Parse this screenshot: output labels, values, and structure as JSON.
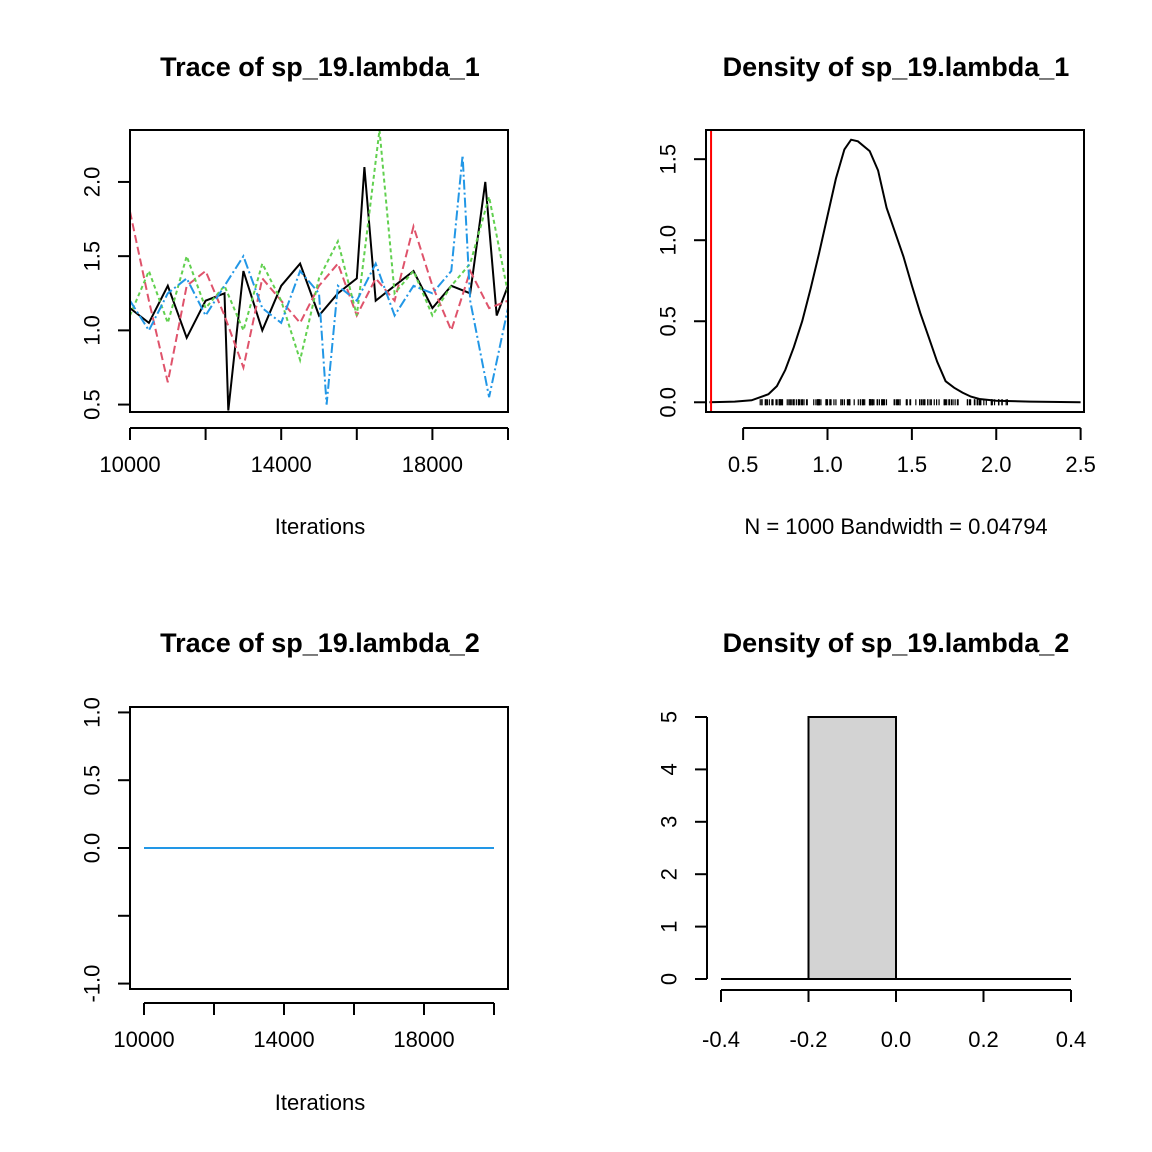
{
  "chart_data": [
    {
      "id": "trace1",
      "type": "line",
      "title": "Trace of sp_19.lambda_1",
      "xlabel": "Iterations",
      "ylabel": "",
      "xlim": [
        10000,
        20000
      ],
      "ylim": [
        0.45,
        2.35
      ],
      "xticks": [
        10000,
        12000,
        14000,
        16000,
        18000,
        20000
      ],
      "xtick_labels": [
        "10000",
        "",
        "14000",
        "",
        "18000",
        ""
      ],
      "yticks": [
        0.5,
        1.0,
        1.5,
        2.0
      ],
      "ytick_labels": [
        "0.5",
        "1.0",
        "1.5",
        "2.0"
      ],
      "grid": false,
      "series": [
        {
          "color": "#000000",
          "dash": "",
          "points": [
            [
              10000,
              1.15
            ],
            [
              10500,
              1.05
            ],
            [
              11000,
              1.3
            ],
            [
              11500,
              0.95
            ],
            [
              12000,
              1.2
            ],
            [
              12500,
              1.25
            ],
            [
              12600,
              0.46
            ],
            [
              13000,
              1.4
            ],
            [
              13500,
              1.0
            ],
            [
              14000,
              1.3
            ],
            [
              14500,
              1.45
            ],
            [
              15000,
              1.1
            ],
            [
              15500,
              1.25
            ],
            [
              16000,
              1.35
            ],
            [
              16200,
              2.1
            ],
            [
              16500,
              1.2
            ],
            [
              17000,
              1.3
            ],
            [
              17500,
              1.4
            ],
            [
              18000,
              1.15
            ],
            [
              18500,
              1.3
            ],
            [
              19000,
              1.25
            ],
            [
              19400,
              2.0
            ],
            [
              19700,
              1.1
            ],
            [
              20000,
              1.3
            ]
          ]
        },
        {
          "color": "#DF536B",
          "dash": "8,4",
          "points": [
            [
              10000,
              1.8
            ],
            [
              10500,
              1.2
            ],
            [
              11000,
              0.65
            ],
            [
              11500,
              1.3
            ],
            [
              12000,
              1.4
            ],
            [
              12500,
              1.1
            ],
            [
              13000,
              0.75
            ],
            [
              13500,
              1.35
            ],
            [
              14000,
              1.2
            ],
            [
              14500,
              1.05
            ],
            [
              15000,
              1.3
            ],
            [
              15500,
              1.45
            ],
            [
              16000,
              1.1
            ],
            [
              16500,
              1.35
            ],
            [
              17000,
              1.2
            ],
            [
              17500,
              1.7
            ],
            [
              18000,
              1.3
            ],
            [
              18500,
              1.0
            ],
            [
              19000,
              1.4
            ],
            [
              19500,
              1.15
            ],
            [
              20000,
              1.2
            ]
          ]
        },
        {
          "color": "#61D04F",
          "dash": "4,3",
          "points": [
            [
              10000,
              1.1
            ],
            [
              10500,
              1.4
            ],
            [
              11000,
              1.05
            ],
            [
              11500,
              1.5
            ],
            [
              12000,
              1.15
            ],
            [
              12500,
              1.3
            ],
            [
              13000,
              1.0
            ],
            [
              13500,
              1.45
            ],
            [
              14000,
              1.2
            ],
            [
              14500,
              0.8
            ],
            [
              15000,
              1.35
            ],
            [
              15500,
              1.6
            ],
            [
              16000,
              1.1
            ],
            [
              16600,
              2.35
            ],
            [
              17000,
              1.25
            ],
            [
              17500,
              1.4
            ],
            [
              18000,
              1.1
            ],
            [
              18500,
              1.3
            ],
            [
              19000,
              1.45
            ],
            [
              19500,
              1.9
            ],
            [
              20000,
              1.25
            ]
          ]
        },
        {
          "color": "#2297E6",
          "dash": "10,3,2,3",
          "points": [
            [
              10000,
              1.2
            ],
            [
              10500,
              1.0
            ],
            [
              11000,
              1.25
            ],
            [
              11500,
              1.35
            ],
            [
              12000,
              1.1
            ],
            [
              12500,
              1.3
            ],
            [
              13000,
              1.5
            ],
            [
              13500,
              1.15
            ],
            [
              14000,
              1.05
            ],
            [
              14500,
              1.4
            ],
            [
              15000,
              1.25
            ],
            [
              15200,
              0.5
            ],
            [
              15500,
              1.3
            ],
            [
              16000,
              1.2
            ],
            [
              16500,
              1.45
            ],
            [
              17000,
              1.1
            ],
            [
              17500,
              1.3
            ],
            [
              18000,
              1.25
            ],
            [
              18500,
              1.4
            ],
            [
              18800,
              2.18
            ],
            [
              19000,
              1.2
            ],
            [
              19500,
              0.55
            ],
            [
              20000,
              1.15
            ]
          ]
        }
      ]
    },
    {
      "id": "density1",
      "type": "line",
      "title": "Density of sp_19.lambda_1",
      "xlabel": "N = 1000   Bandwidth = 0.04794",
      "ylabel": "",
      "xlim": [
        0.28,
        2.52
      ],
      "ylim": [
        -0.06,
        1.68
      ],
      "xticks": [
        0.5,
        1.0,
        1.5,
        2.0,
        2.5
      ],
      "xtick_labels": [
        "0.5",
        "1.0",
        "1.5",
        "2.0",
        "2.5"
      ],
      "yticks": [
        0.0,
        0.5,
        1.0,
        1.5
      ],
      "ytick_labels": [
        "0.0",
        "0.5",
        "1.0",
        "1.5"
      ],
      "grid": false,
      "series": [
        {
          "color": "#000000",
          "points": [
            [
              0.3,
              0.0
            ],
            [
              0.45,
              0.004
            ],
            [
              0.55,
              0.012
            ],
            [
              0.65,
              0.05
            ],
            [
              0.7,
              0.1
            ],
            [
              0.75,
              0.2
            ],
            [
              0.8,
              0.34
            ],
            [
              0.85,
              0.5
            ],
            [
              0.9,
              0.7
            ],
            [
              0.95,
              0.92
            ],
            [
              1.0,
              1.15
            ],
            [
              1.05,
              1.38
            ],
            [
              1.1,
              1.56
            ],
            [
              1.14,
              1.62
            ],
            [
              1.18,
              1.61
            ],
            [
              1.25,
              1.55
            ],
            [
              1.3,
              1.43
            ],
            [
              1.35,
              1.2
            ],
            [
              1.4,
              1.05
            ],
            [
              1.45,
              0.9
            ],
            [
              1.5,
              0.72
            ],
            [
              1.55,
              0.55
            ],
            [
              1.6,
              0.4
            ],
            [
              1.65,
              0.25
            ],
            [
              1.7,
              0.13
            ],
            [
              1.75,
              0.09
            ],
            [
              1.8,
              0.06
            ],
            [
              1.85,
              0.035
            ],
            [
              1.9,
              0.02
            ],
            [
              2.0,
              0.01
            ],
            [
              2.2,
              0.004
            ],
            [
              2.5,
              0.0
            ]
          ]
        }
      ],
      "reference_line": {
        "x": 0.31,
        "color": "#FF0000"
      },
      "rug": {
        "from": 0.6,
        "to": 2.08,
        "y": 0.0
      }
    },
    {
      "id": "trace2",
      "type": "line",
      "title": "Trace of sp_19.lambda_2",
      "xlabel": "Iterations",
      "ylabel": "",
      "xlim": [
        9600,
        20400
      ],
      "ylim": [
        -1.04,
        1.04
      ],
      "xticks": [
        10000,
        12000,
        14000,
        16000,
        18000,
        20000
      ],
      "xtick_labels": [
        "10000",
        "",
        "14000",
        "",
        "18000",
        ""
      ],
      "yticks": [
        -1.0,
        -0.5,
        0.0,
        0.5,
        1.0
      ],
      "ytick_labels": [
        "-1.0",
        "",
        "0.0",
        "0.5",
        "1.0"
      ],
      "grid": false,
      "series": [
        {
          "color": "#2297E6",
          "points": [
            [
              10000,
              0.0
            ],
            [
              20000,
              0.0
            ]
          ]
        }
      ]
    },
    {
      "id": "density2",
      "type": "bar",
      "title": "Density of sp_19.lambda_2",
      "xlabel": "",
      "ylabel": "",
      "xlim": [
        -0.4,
        0.4
      ],
      "ylim": [
        0,
        5
      ],
      "xticks": [
        -0.4,
        -0.2,
        0.0,
        0.2,
        0.4
      ],
      "xtick_labels": [
        "-0.4",
        "-0.2",
        "0.0",
        "0.2",
        "0.4"
      ],
      "yticks": [
        0,
        1,
        2,
        3,
        4,
        5
      ],
      "ytick_labels": [
        "0",
        "1",
        "2",
        "3",
        "4",
        "5"
      ],
      "grid": false,
      "bins": [
        {
          "x0": -0.2,
          "x1": 0.0,
          "value": 5,
          "fill": "#D3D3D3"
        }
      ]
    }
  ]
}
